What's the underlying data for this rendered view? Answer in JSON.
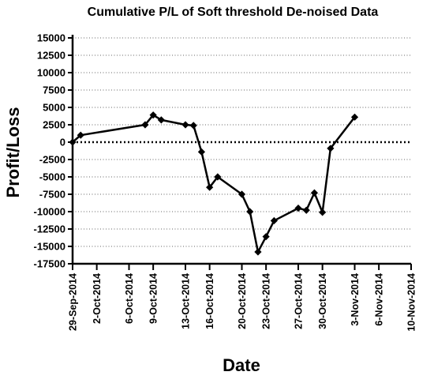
{
  "chart_data": {
    "type": "line",
    "title": "Cumulative P/L of Soft threshold De-noised Data",
    "xlabel": "Date",
    "ylabel": "Profit/Loss",
    "x_start": "2014-09-29",
    "xlim": [
      "2014-09-29",
      "2014-11-10"
    ],
    "ylim": [
      -17500,
      15000
    ],
    "x_ticks": [
      "29-Sep-2014",
      "2-Oct-2014",
      "6-Oct-2014",
      "9-Oct-2014",
      "13-Oct-2014",
      "16-Oct-2014",
      "20-Oct-2014",
      "23-Oct-2014",
      "27-Oct-2014",
      "30-Oct-2014",
      "3-Nov-2014",
      "6-Nov-2014",
      "10-Nov-2014"
    ],
    "y_ticks": [
      15000,
      12500,
      10000,
      7500,
      5000,
      2500,
      0,
      -2500,
      -5000,
      -7500,
      -10000,
      -12500,
      -15000,
      -17500
    ],
    "y_tick_labels": [
      "15000",
      "12500",
      "10000",
      "7500",
      "5000",
      "2500",
      "0",
      "-2500",
      "-5000",
      "-7500",
      "-10000",
      "-12500",
      "-15000",
      "-17500"
    ],
    "grid": "horizontal-dotted",
    "zero_line": "dotted-bold",
    "series": [
      {
        "name": "",
        "marker": "diamond",
        "color": "#000000",
        "points": [
          {
            "x": "2014-09-29",
            "y": 0
          },
          {
            "x": "2014-09-30",
            "y": 1000
          },
          {
            "x": "2014-10-08",
            "y": 2500
          },
          {
            "x": "2014-10-09",
            "y": 3900
          },
          {
            "x": "2014-10-10",
            "y": 3200
          },
          {
            "x": "2014-10-13",
            "y": 2500
          },
          {
            "x": "2014-10-14",
            "y": 2400
          },
          {
            "x": "2014-10-15",
            "y": -1400
          },
          {
            "x": "2014-10-16",
            "y": -6500
          },
          {
            "x": "2014-10-17",
            "y": -5000
          },
          {
            "x": "2014-10-20",
            "y": -7500
          },
          {
            "x": "2014-10-21",
            "y": -10000
          },
          {
            "x": "2014-10-22",
            "y": -15800
          },
          {
            "x": "2014-10-23",
            "y": -13600
          },
          {
            "x": "2014-10-24",
            "y": -11300
          },
          {
            "x": "2014-10-27",
            "y": -9500
          },
          {
            "x": "2014-10-28",
            "y": -9800
          },
          {
            "x": "2014-10-29",
            "y": -7300
          },
          {
            "x": "2014-10-30",
            "y": -10100
          },
          {
            "x": "2014-10-31",
            "y": -900
          },
          {
            "x": "2014-11-03",
            "y": 3600
          }
        ]
      }
    ]
  }
}
